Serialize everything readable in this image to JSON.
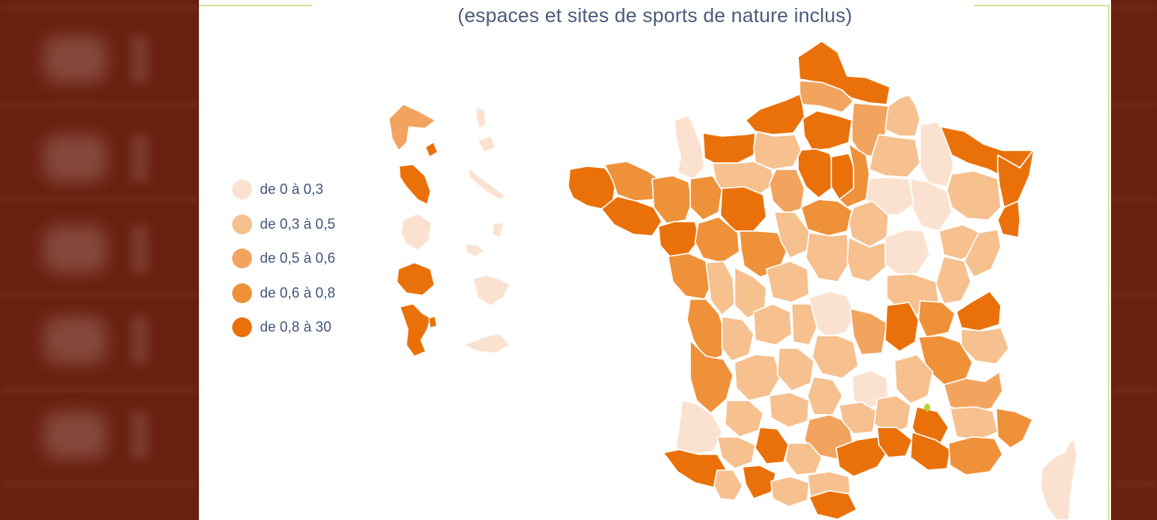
{
  "map": {
    "subtitle": "(espaces et sites de sports de nature inclus)",
    "legend": [
      {
        "label": "de 0 à 0,3",
        "color": "#fbe2d0"
      },
      {
        "label": "de 0,3 à 0,5",
        "color": "#f6c08f"
      },
      {
        "label": "de 0,5 à 0,6",
        "color": "#f2a45e"
      },
      {
        "label": "de 0,6 à 0,8",
        "color": "#ef9139"
      },
      {
        "label": "de 0,8 à 30",
        "color": "#ea7109"
      }
    ],
    "highlight_color": "#b7d433"
  }
}
